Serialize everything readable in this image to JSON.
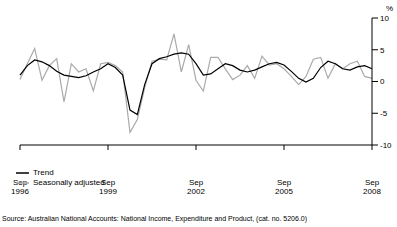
{
  "chart_data": {
    "type": "line",
    "y_label": "%",
    "annotations": [
      "Source: Australian National Accounts: National Income, Expenditure and Product, (cat. no. 5206.0)"
    ],
    "categories": [
      "Sep 1996",
      null,
      null,
      null,
      null,
      null,
      null,
      null,
      null,
      null,
      null,
      null,
      "Sep 1999",
      null,
      null,
      null,
      null,
      null,
      null,
      null,
      null,
      null,
      null,
      null,
      "Sep 2002",
      null,
      null,
      null,
      null,
      null,
      null,
      null,
      null,
      null,
      null,
      null,
      "Sep 2005",
      null,
      null,
      null,
      null,
      null,
      null,
      null,
      null,
      null,
      null,
      null,
      "Sep 2008"
    ],
    "series": [
      {
        "name": "Trend",
        "color": "#000000",
        "values": [
          1.0,
          2.5,
          3.4,
          3.1,
          2.5,
          1.6,
          1.0,
          0.8,
          0.6,
          0.9,
          1.5,
          2.0,
          2.8,
          2.2,
          1.0,
          -4.5,
          -5.2,
          -0.5,
          2.8,
          3.6,
          3.9,
          4.3,
          4.5,
          4.3,
          2.8,
          1.0,
          1.2,
          2.0,
          2.8,
          2.5,
          1.8,
          1.5,
          1.8,
          2.3,
          2.8,
          3.0,
          2.6,
          1.6,
          0.5,
          -0.1,
          0.5,
          2.2,
          3.2,
          2.8,
          2.0,
          1.8,
          2.3,
          2.5,
          2.0
        ]
      },
      {
        "name": "Seasonally adjusted",
        "color": "#aaaaaa",
        "values": [
          0.3,
          2.8,
          5.2,
          0.2,
          2.5,
          3.6,
          -3.2,
          2.8,
          1.5,
          2.0,
          -1.5,
          2.8,
          3.0,
          2.5,
          1.5,
          -8.0,
          -6.0,
          -1.0,
          3.2,
          3.5,
          3.4,
          7.5,
          1.5,
          5.8,
          0.2,
          -1.5,
          3.8,
          3.8,
          2.0,
          0.3,
          1.0,
          2.5,
          0.5,
          4.0,
          2.6,
          2.8,
          2.0,
          0.8,
          -0.5,
          0.8,
          3.5,
          3.8,
          0.5,
          2.8,
          2.0,
          2.8,
          3.2,
          0.8,
          0.5
        ]
      }
    ],
    "ylim": [
      -10,
      10
    ],
    "yticks": [
      -10,
      -5,
      0,
      5,
      10
    ],
    "legend": "lower left",
    "grid": false
  }
}
